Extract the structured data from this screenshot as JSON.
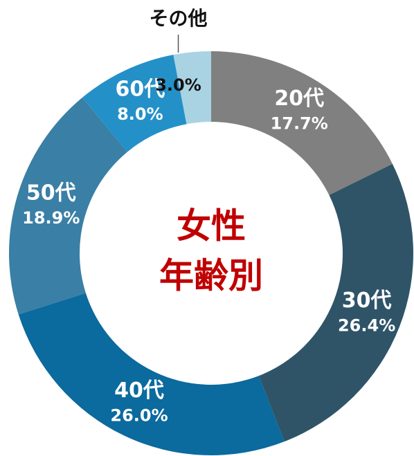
{
  "chart_data": {
    "type": "donut",
    "center_label": [
      "女性",
      "年齢別"
    ],
    "categories": [
      "20代",
      "30代",
      "40代",
      "50代",
      "60代",
      "その他"
    ],
    "values": [
      17.7,
      26.4,
      26.0,
      18.9,
      8.0,
      3.0
    ],
    "value_labels": [
      "17.7%",
      "26.4%",
      "26.0%",
      "18.9%",
      "8.0%",
      "3.0%"
    ],
    "colors": [
      "#808080",
      "#2f5468",
      "#0b6a9e",
      "#3a7fa5",
      "#2490c8",
      "#a9d3e3"
    ]
  }
}
